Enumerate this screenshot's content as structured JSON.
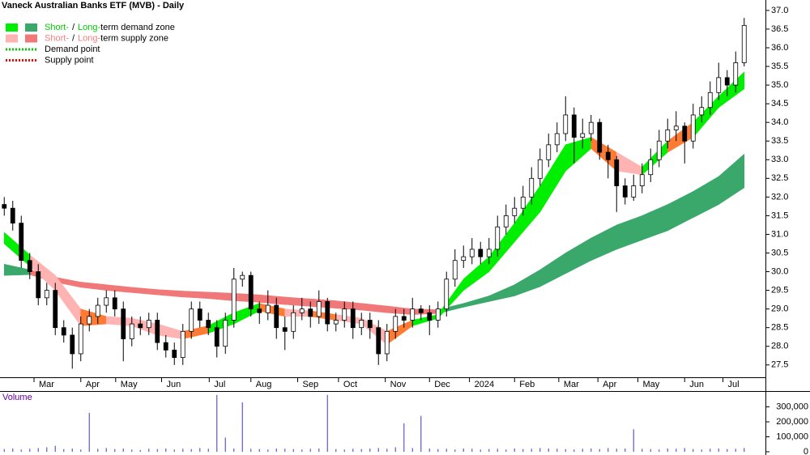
{
  "chart_data": {
    "type": "candlestick",
    "title": "Vaneck Australian Banks ETF (MVB) - Daily",
    "x": [
      0,
      1,
      2,
      3,
      4,
      5,
      6,
      7,
      8,
      9,
      10,
      11,
      12,
      13,
      14,
      15,
      16,
      17,
      18,
      19,
      20,
      21,
      22,
      23,
      24,
      25,
      26,
      27,
      28,
      29,
      30,
      31,
      32,
      33,
      34,
      35,
      36,
      37,
      38,
      39,
      40,
      41,
      42,
      43,
      44,
      45,
      46,
      47,
      48,
      49,
      50,
      51,
      52,
      53,
      54,
      55,
      56,
      57,
      58,
      59,
      60,
      61,
      62,
      63,
      64,
      65,
      66,
      67,
      68,
      69,
      70,
      71,
      72,
      73,
      74,
      75,
      76,
      77,
      78,
      79,
      80,
      81,
      82,
      83,
      84,
      85,
      86,
      87
    ],
    "open": [
      31.8,
      31.7,
      31.3,
      30.3,
      30.0,
      29.3,
      29.5,
      28.5,
      28.3,
      27.8,
      28.6,
      28.8,
      29.1,
      29.3,
      29.0,
      28.2,
      28.6,
      28.5,
      28.7,
      28.1,
      27.9,
      27.7,
      28.4,
      29.0,
      28.7,
      28.5,
      28.0,
      28.7,
      29.8,
      29.9,
      29.0,
      28.9,
      29.1,
      28.5,
      28.4,
      28.9,
      29.0,
      28.8,
      29.2,
      28.6,
      28.7,
      29.0,
      28.5,
      28.7,
      28.5,
      27.8,
      28.4,
      28.8,
      28.7,
      29.0,
      28.9,
      28.7,
      29.0,
      29.8,
      30.3,
      30.4,
      30.6,
      30.4,
      30.6,
      31.2,
      31.5,
      31.7,
      32.0,
      32.5,
      33.0,
      33.4,
      33.7,
      34.2,
      33.6,
      33.7,
      34.0,
      33.2,
      33.0,
      32.3,
      32.0,
      32.3,
      32.6,
      33.0,
      33.5,
      33.8,
      33.9,
      33.5,
      34.2,
      34.4,
      34.8,
      35.2,
      35.0,
      35.6
    ],
    "high": [
      32.0,
      31.9,
      31.5,
      30.5,
      30.2,
      29.7,
      29.7,
      28.7,
      28.5,
      28.8,
      29.0,
      29.3,
      29.5,
      29.5,
      29.2,
      28.8,
      28.8,
      28.9,
      28.9,
      28.3,
      28.1,
      28.6,
      29.2,
      29.2,
      28.9,
      28.7,
      28.9,
      30.1,
      30.0,
      30.0,
      29.2,
      29.5,
      29.3,
      28.8,
      29.1,
      29.3,
      29.2,
      29.5,
      29.3,
      28.9,
      29.2,
      29.2,
      28.9,
      28.9,
      28.7,
      28.6,
      29.0,
      29.0,
      29.3,
      29.1,
      29.1,
      29.2,
      30.0,
      30.6,
      30.7,
      30.9,
      30.8,
      30.9,
      31.5,
      31.8,
      32.0,
      32.3,
      32.8,
      33.3,
      33.7,
      34.0,
      34.7,
      34.4,
      34.1,
      34.2,
      34.1,
      33.4,
      33.1,
      32.5,
      32.6,
      32.9,
      33.3,
      33.8,
      34.1,
      34.3,
      34.0,
      34.5,
      34.7,
      35.1,
      35.6,
      35.4,
      35.9,
      36.8
    ],
    "low": [
      31.5,
      31.1,
      30.1,
      29.8,
      29.1,
      29.1,
      28.3,
      28.1,
      27.4,
      27.6,
      28.4,
      28.6,
      28.9,
      28.8,
      27.6,
      28.0,
      28.3,
      28.3,
      27.9,
      27.7,
      27.5,
      27.5,
      28.2,
      28.5,
      28.3,
      27.7,
      27.8,
      28.5,
      29.6,
      28.8,
      28.6,
      28.7,
      28.2,
      27.9,
      28.2,
      28.7,
      28.5,
      28.6,
      28.4,
      28.4,
      28.5,
      28.2,
      28.3,
      28.2,
      27.5,
      27.6,
      28.2,
      28.5,
      28.5,
      28.7,
      28.3,
      28.5,
      28.8,
      29.6,
      30.1,
      30.2,
      30.2,
      30.2,
      30.4,
      31.0,
      31.3,
      31.5,
      31.8,
      32.3,
      32.8,
      33.2,
      33.5,
      32.9,
      33.3,
      33.5,
      33.0,
      32.5,
      31.6,
      31.8,
      31.9,
      32.1,
      32.4,
      32.8,
      33.3,
      33.5,
      32.9,
      33.3,
      34.0,
      34.2,
      34.6,
      34.7,
      34.8,
      35.5
    ],
    "close": [
      31.7,
      31.3,
      30.3,
      30.0,
      29.3,
      29.5,
      28.5,
      28.3,
      27.8,
      28.6,
      28.8,
      29.1,
      29.3,
      29.0,
      28.2,
      28.6,
      28.5,
      28.7,
      28.1,
      27.9,
      27.7,
      28.4,
      29.0,
      28.7,
      28.5,
      28.0,
      28.7,
      29.8,
      29.9,
      29.0,
      28.9,
      29.1,
      28.5,
      28.4,
      28.9,
      29.0,
      28.8,
      29.2,
      28.6,
      28.7,
      29.0,
      28.5,
      28.7,
      28.5,
      27.8,
      28.4,
      28.8,
      28.7,
      29.0,
      28.9,
      28.7,
      29.0,
      29.8,
      30.3,
      30.4,
      30.6,
      30.4,
      30.6,
      31.2,
      31.5,
      31.7,
      32.0,
      32.5,
      33.0,
      33.4,
      33.7,
      34.2,
      33.6,
      33.7,
      34.0,
      33.2,
      33.0,
      32.3,
      32.0,
      32.3,
      32.6,
      33.0,
      33.5,
      33.8,
      33.9,
      33.5,
      34.2,
      34.4,
      34.8,
      35.2,
      35.0,
      35.6,
      36.6
    ],
    "up_color": "#ffffff",
    "down_color": "#000000",
    "xlim": [
      -0.5,
      89.5
    ],
    "xticks": [
      {
        "value": 3.5,
        "label": "Mar"
      },
      {
        "value": 9,
        "label": "Apr"
      },
      {
        "value": 13.1,
        "label": "May"
      },
      {
        "value": 18.5,
        "label": "Jun"
      },
      {
        "value": 24.1,
        "label": "Jul"
      },
      {
        "value": 29,
        "label": "Aug"
      },
      {
        "value": 34.5,
        "label": "Sep"
      },
      {
        "value": 39.3,
        "label": "Oct"
      },
      {
        "value": 44.8,
        "label": "Nov"
      },
      {
        "value": 50,
        "label": "Dec"
      },
      {
        "value": 54.7,
        "label": "2024"
      },
      {
        "value": 60,
        "label": "Feb"
      },
      {
        "value": 65.2,
        "label": "Mar"
      },
      {
        "value": 69.8,
        "label": "Apr"
      },
      {
        "value": 74.5,
        "label": "May"
      },
      {
        "value": 80,
        "label": "Jun"
      },
      {
        "value": 84.5,
        "label": "Jul"
      }
    ],
    "ylim": [
      27.17,
      37.28
    ],
    "yticks": [
      27.5,
      {
        "value": 28,
        "label": "28.0"
      },
      28.5,
      {
        "value": 29,
        "label": "29.0"
      },
      29.5,
      {
        "value": 30,
        "label": "30.0"
      },
      30.5,
      {
        "value": 31,
        "label": "31.0"
      },
      31.5,
      {
        "value": 32,
        "label": "32.0"
      },
      32.5,
      {
        "value": 33,
        "label": "33.0"
      },
      33.5,
      {
        "value": 34,
        "label": "34.0"
      },
      34.5,
      {
        "value": 35,
        "label": "35.0"
      },
      35.5,
      {
        "value": 36,
        "label": "36.0"
      },
      36.5,
      {
        "value": 37,
        "label": "37.0"
      }
    ],
    "zones": [
      {
        "x": [
          0,
          3,
          6,
          9,
          12,
          15,
          18,
          21,
          24,
          27,
          30,
          33,
          36,
          39,
          42,
          45,
          48,
          51,
          54,
          57,
          60,
          63,
          66,
          69,
          72,
          75,
          78,
          81,
          84,
          87
        ],
        "upper": [
          30.2,
          30.05,
          29.85,
          29.72,
          29.65,
          29.58,
          29.52,
          29.48,
          29.45,
          29.42,
          29.38,
          29.32,
          29.27,
          29.22,
          29.15,
          29.08,
          29.0,
          28.98,
          29.15,
          29.35,
          29.65,
          30.05,
          30.5,
          30.9,
          31.25,
          31.5,
          31.8,
          32.15,
          32.55,
          33.15
        ],
        "lower": [
          29.9,
          29.92,
          29.72,
          29.58,
          29.5,
          29.44,
          29.38,
          29.32,
          29.28,
          29.22,
          29.18,
          29.12,
          29.07,
          29.02,
          28.97,
          28.9,
          28.85,
          28.88,
          29.05,
          29.2,
          29.35,
          29.6,
          29.95,
          30.3,
          30.6,
          30.85,
          31.1,
          31.45,
          31.8,
          32.25
        ],
        "colors": [
          "#3aa86b",
          "#f07878",
          "#f07878",
          "#f07878",
          "#f07878",
          "#f07878",
          "#f07878",
          "#f07878",
          "#f07878",
          "#f07878",
          "#f07878",
          "#f07878",
          "#f07878",
          "#f07878",
          "#f07878",
          "#f07878",
          "#f07878",
          "#3aa86b",
          "#3aa86b",
          "#3aa86b",
          "#3aa86b",
          "#3aa86b",
          "#3aa86b",
          "#3aa86b",
          "#3aa86b",
          "#3aa86b",
          "#3aa86b",
          "#3aa86b",
          "#3aa86b"
        ]
      },
      {
        "x": [
          0,
          3,
          6,
          9,
          12,
          15,
          18,
          21,
          24,
          27,
          30,
          33,
          36,
          39,
          42,
          45,
          48,
          51,
          54,
          57,
          60,
          63,
          66,
          69,
          72,
          75,
          78,
          81,
          84,
          87
        ],
        "upper": [
          31.05,
          30.45,
          29.9,
          29.0,
          28.8,
          28.75,
          28.6,
          28.4,
          28.55,
          28.9,
          29.15,
          29.0,
          28.95,
          28.85,
          28.75,
          28.4,
          28.7,
          28.85,
          29.8,
          30.4,
          31.3,
          32.3,
          33.4,
          33.6,
          33.2,
          32.8,
          33.5,
          34.0,
          34.7,
          35.35
        ],
        "lower": [
          30.75,
          30.15,
          29.5,
          28.55,
          28.6,
          28.55,
          28.3,
          28.2,
          28.35,
          28.6,
          28.95,
          28.8,
          28.8,
          28.7,
          28.6,
          28.05,
          28.55,
          28.75,
          29.5,
          30.0,
          30.8,
          31.6,
          32.7,
          33.3,
          32.7,
          32.6,
          33.2,
          33.6,
          34.4,
          34.9
        ],
        "colors": [
          "#00ee00",
          "#ffb3b3",
          "#ffb3b3",
          "#ff7a33",
          "#ffb3b3",
          "#ffb3b3",
          "#ffb3b3",
          "#ff7a33",
          "#00ee00",
          "#00ee00",
          "#ff7a33",
          "#ffb3b3",
          "#ff7a33",
          "#ffb3b3",
          "#ffb3b3",
          "#ff7a33",
          "#00ee00",
          "#00ee00",
          "#00ee00",
          "#00ee00",
          "#00ee00",
          "#00ee00",
          "#00ee00",
          "#ff7a33",
          "#ffb3b3",
          "#00ee00",
          "#ff7a33",
          "#00ee00",
          "#00ee00"
        ]
      }
    ],
    "legend": [
      {
        "short": "Short-",
        "sep": "/",
        "long": "Long-",
        "text": "term demand zone",
        "colors": [
          "#00ee00",
          "#3aa86b"
        ],
        "text_color": "#00cc00"
      },
      {
        "short": "Short-",
        "sep": "/",
        "long": "Long-",
        "text": "term supply zone",
        "colors": [
          "#ffb3b3",
          "#f07878"
        ],
        "text_color": "#f08080"
      },
      {
        "text": "Demand point",
        "color": "#00cc00"
      },
      {
        "text": "Supply point",
        "color": "#ff0000"
      }
    ],
    "volume": {
      "title": "Volume",
      "values": [
        18000,
        22000,
        15000,
        20000,
        25000,
        30000,
        40000,
        18000,
        22000,
        15000,
        260000,
        20000,
        25000,
        18000,
        22000,
        15000,
        12000,
        20000,
        18000,
        22000,
        15000,
        20000,
        18000,
        25000,
        20000,
        380000,
        95000,
        22000,
        330000,
        20000,
        18000,
        15000,
        22000,
        20000,
        18000,
        15000,
        20000,
        22000,
        380000,
        18000,
        15000,
        20000,
        18000,
        22000,
        25000,
        20000,
        30000,
        190000,
        25000,
        240000,
        22000,
        18000,
        20000,
        15000,
        22000,
        20000,
        15000,
        18000,
        20000,
        15000,
        22000,
        18000,
        20000,
        25000,
        22000,
        20000,
        18000,
        15000,
        20000,
        22000,
        18000,
        25000,
        20000,
        22000,
        150000,
        20000,
        18000,
        15000,
        22000,
        20000,
        25000,
        18000,
        15000,
        20000,
        22000,
        18000,
        20000,
        25000
      ],
      "color": "#5a5acc",
      "ylim": [
        0,
        395000
      ],
      "yticks": [
        {
          "value": 0,
          "label": "0"
        },
        {
          "value": 100000,
          "label": "100,000"
        },
        {
          "value": 200000,
          "label": "200,000"
        },
        {
          "value": 300000,
          "label": "300,000"
        }
      ]
    }
  }
}
